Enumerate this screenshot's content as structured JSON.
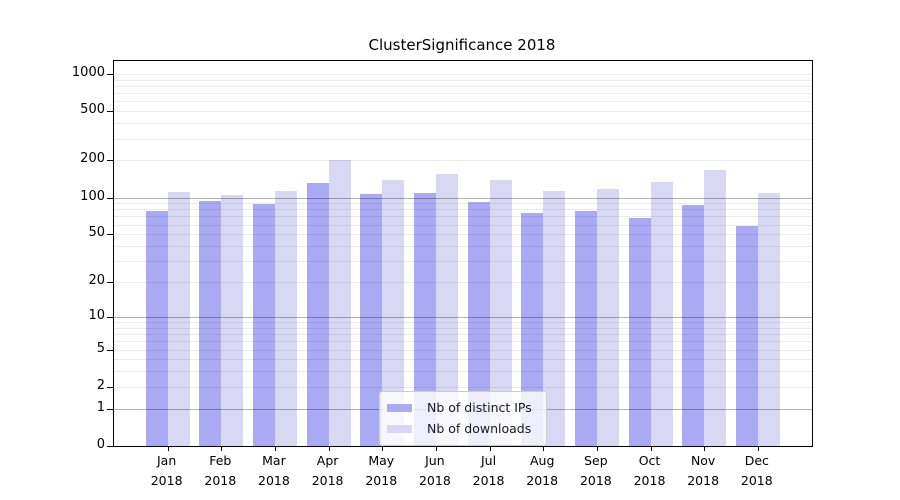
{
  "title": "ClusterSignificance 2018",
  "chart_data": {
    "type": "bar",
    "title": "ClusterSignificance 2018",
    "categories": [
      "Jan",
      "Feb",
      "Mar",
      "Apr",
      "May",
      "Jun",
      "Jul",
      "Aug",
      "Sep",
      "Oct",
      "Nov",
      "Dec"
    ],
    "year_label": "2018",
    "series": [
      {
        "name": "Nb of distinct IPs",
        "color": "#aaaaf4",
        "values": [
          78,
          94,
          88,
          130,
          107,
          108,
          92,
          75,
          77,
          68,
          87,
          58
        ]
      },
      {
        "name": "Nb of downloads",
        "color": "#d8d8f4",
        "values": [
          111,
          105,
          112,
          200,
          140,
          156,
          138,
          113,
          117,
          134,
          166,
          108
        ]
      }
    ],
    "xlabel": "",
    "ylabel": "",
    "yscale": "log1p",
    "yticks": [
      0,
      1,
      2,
      5,
      10,
      20,
      50,
      100,
      200,
      500,
      1000
    ],
    "ylim": [
      0,
      1274
    ],
    "grid": "on",
    "emphasized_gridlines": [
      1,
      10,
      100
    ],
    "legend_position": "lower-center"
  },
  "colors": {
    "bar_distinct_ips": "#aaaaf4",
    "bar_downloads": "#d8d8f4",
    "grid_minor": "rgba(0,0,0,0.08)",
    "grid_decade": "rgba(0,0,0,0.30)",
    "axis": "#000000",
    "legend_border": "#cccccc"
  }
}
